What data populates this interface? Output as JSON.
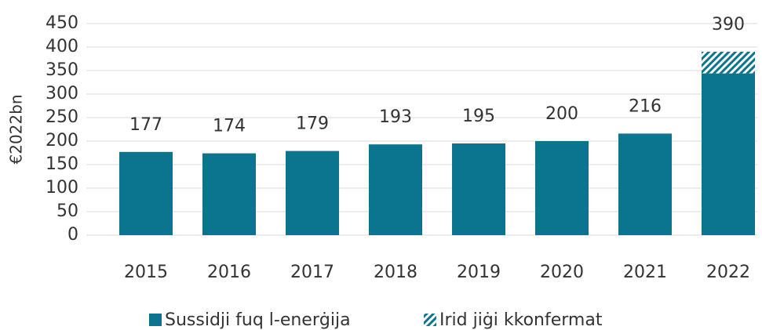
{
  "chart_data": {
    "type": "stacked_bar",
    "y_label": "€2022bn",
    "categories": [
      "2015",
      "2016",
      "2017",
      "2018",
      "2019",
      "2020",
      "2021",
      "2022"
    ],
    "series": [
      {
        "name": "Sussidji fuq l-enerġija",
        "color": "#0b758f",
        "values": [
          177,
          174,
          179,
          193,
          195,
          200,
          216,
          344
        ]
      },
      {
        "name": "Irid jiġi kkonfermat",
        "color": "#0b758f",
        "pattern": "hatch",
        "values": [
          null,
          null,
          null,
          null,
          null,
          null,
          null,
          46
        ]
      }
    ],
    "total_labels": [
      177,
      174,
      179,
      193,
      195,
      200,
      216,
      390
    ],
    "ylim": [
      0,
      450
    ],
    "yticks": [
      0,
      50,
      100,
      150,
      200,
      250,
      300,
      350,
      400,
      450
    ],
    "grid": true
  }
}
